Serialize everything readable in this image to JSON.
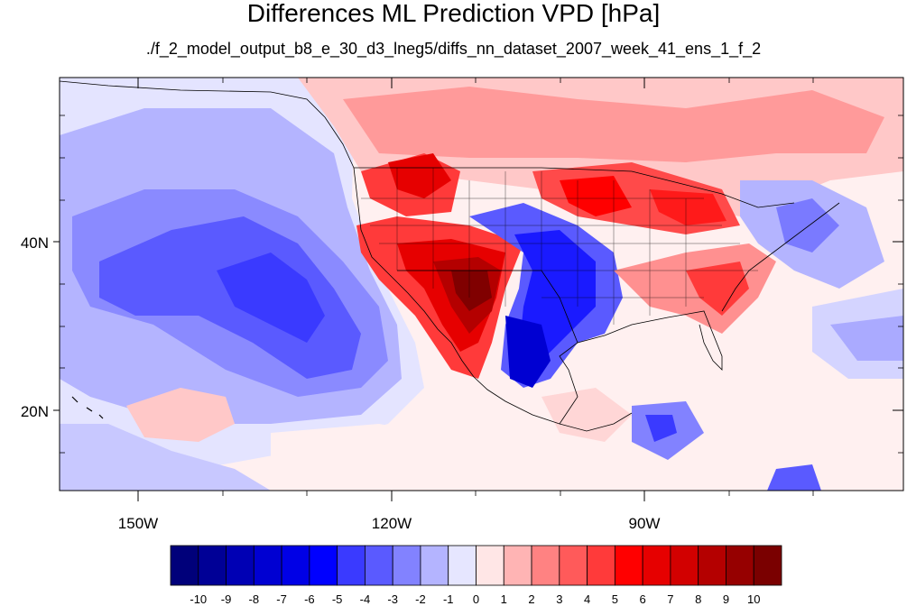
{
  "title": "Differences ML Prediction VPD [hPa]",
  "subtitle": "./f_2_model_output_b8_e_30_d3_lneg5/diffs_nn_dataset_2007_week_41_ens_1_f_2",
  "map": {
    "lon_labels": [
      "150W",
      "120W",
      "90W"
    ],
    "lat_labels": [
      "40N",
      "20N"
    ]
  },
  "colorbar": {
    "labels": [
      "-10",
      "-9",
      "-8",
      "-7",
      "-6",
      "-5",
      "-4",
      "-3",
      "-2",
      "-1",
      "0",
      "1",
      "2",
      "3",
      "4",
      "5",
      "6",
      "7",
      "8",
      "9",
      "10"
    ],
    "colors": [
      "#00007a",
      "#000096",
      "#0000b4",
      "#0000d2",
      "#0000e6",
      "#0000ff",
      "#3a3aff",
      "#5a5aff",
      "#8282ff",
      "#b4b4ff",
      "#e6e6ff",
      "#ffe6e6",
      "#ffb4b4",
      "#ff8282",
      "#ff5a5a",
      "#ff3a3a",
      "#ff0000",
      "#e60000",
      "#d20000",
      "#b40000",
      "#960000",
      "#7a0000"
    ]
  }
}
